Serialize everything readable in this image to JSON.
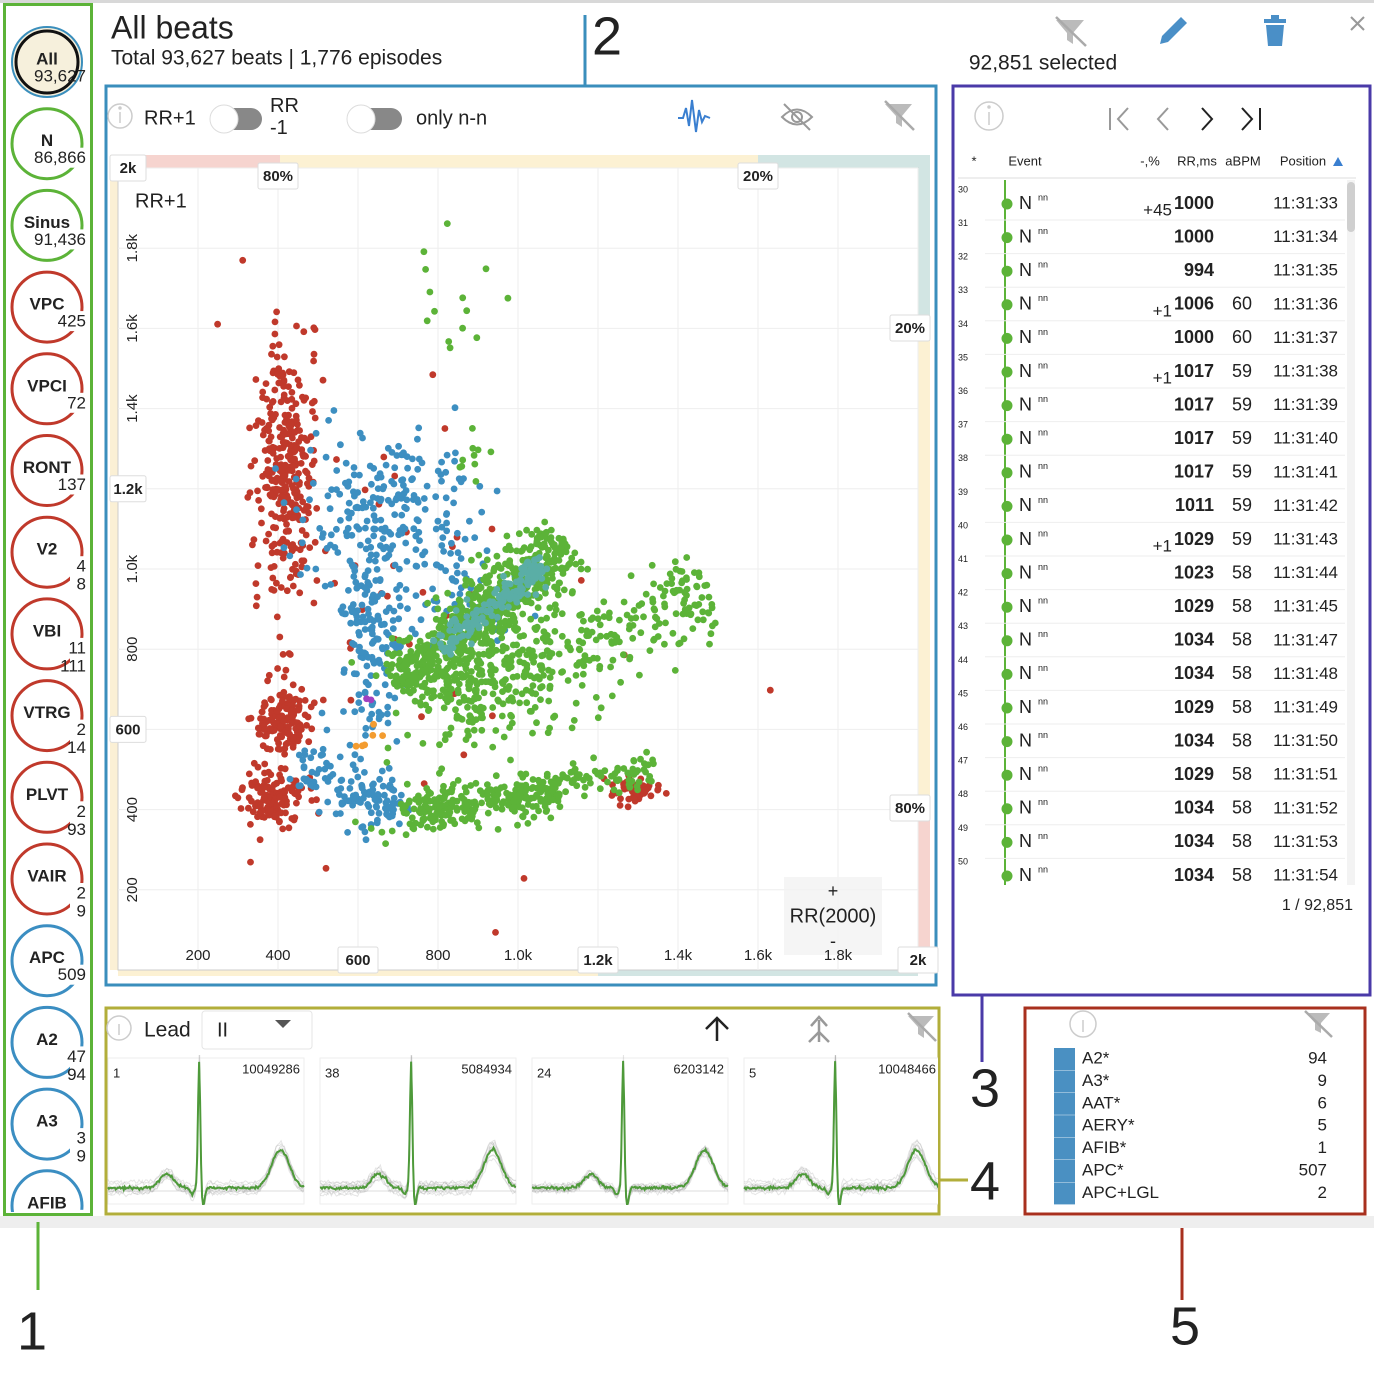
{
  "header": {
    "title": "All beats",
    "subtitle": "Total 93,627 beats | 1,776 episodes",
    "selected": "92,851 selected"
  },
  "sidebar": [
    {
      "label": "All",
      "count": "93,627",
      "color": "#111111"
    },
    {
      "label": "N",
      "count": "86,866",
      "color": "#5cb338"
    },
    {
      "label": "Sinus",
      "count": "91,436",
      "color": "#5cb338"
    },
    {
      "label": "VPC",
      "count": "425",
      "color": "#c0392b"
    },
    {
      "label": "VPCI",
      "count": "72",
      "color": "#c0392b"
    },
    {
      "label": "RONT",
      "count": "137",
      "color": "#c0392b"
    },
    {
      "label": "V2",
      "count": "4",
      "count_2": "8",
      "color": "#c0392b"
    },
    {
      "label": "VBI",
      "count": "11",
      "count_2": "111",
      "color": "#c0392b"
    },
    {
      "label": "VTRG",
      "count": "2",
      "count_2": "14",
      "color": "#c0392b"
    },
    {
      "label": "PLVT",
      "count": "2",
      "count_2": "93",
      "color": "#c0392b"
    },
    {
      "label": "VAIR",
      "count": "2",
      "count_2": "9",
      "color": "#c0392b"
    },
    {
      "label": "APC",
      "count": "509",
      "color": "#3b8ec2"
    },
    {
      "label": "A2",
      "count": "47",
      "count_2": "94",
      "color": "#3b8ec2"
    },
    {
      "label": "A3",
      "count": "3",
      "count_2": "9",
      "color": "#3b8ec2"
    },
    {
      "label": "AFIB",
      "color": "#3b8ec2"
    }
  ],
  "scatter": {
    "toggle_1": "RR+1",
    "toggle_2": "RR-1",
    "filter": "only n-n",
    "y_axis_label": "RR+1",
    "x_axis_label": "RR(2000)",
    "plus": "+",
    "minus": "-",
    "xlim": [
      0,
      2000
    ],
    "ylim": [
      0,
      2000
    ],
    "xticks": [
      200,
      400,
      800,
      {
        "value": 1000,
        "label": "1.0k"
      },
      {
        "value": 1400,
        "label": "1.4k"
      },
      {
        "value": 1600,
        "label": "1.6k"
      },
      {
        "value": 1800,
        "label": "1.8k"
      }
    ],
    "x_markers": [
      600,
      {
        "value": 1200,
        "label": "1.2k"
      },
      {
        "value": 2000,
        "label": "2k"
      }
    ],
    "yticks": [
      200,
      400,
      800,
      {
        "value": 1000,
        "label": "1.0k"
      },
      {
        "value": 1400,
        "label": "1.4k"
      },
      {
        "value": 1600,
        "label": "1.6k"
      },
      {
        "value": 1800,
        "label": "1.8k"
      }
    ],
    "y_markers": [
      600,
      {
        "value": 1200,
        "label": "1.2k"
      },
      {
        "value": 2000,
        "label": "2k"
      }
    ],
    "percent_markers": [
      "80%",
      "20%",
      "20%",
      "80%"
    ]
  },
  "table": {
    "columns": [
      "*",
      "Event",
      "-,%",
      "RR,ms",
      "aBPM",
      "Position"
    ],
    "rows": [
      {
        "n": 30,
        "event": "N",
        "tag": "nn",
        "pct": "+45",
        "rr": 1000,
        "rr_color": "#e8332a",
        "time": "11:31:33"
      },
      {
        "n": 31,
        "event": "N",
        "tag": "nn",
        "rr": 1000,
        "time": "11:31:34"
      },
      {
        "n": 32,
        "event": "N",
        "tag": "nn",
        "rr": 994,
        "time": "11:31:35"
      },
      {
        "n": 33,
        "event": "N",
        "tag": "nn",
        "pct": "+1",
        "rr": 1006,
        "bpm": 60,
        "time": "11:31:36"
      },
      {
        "n": 34,
        "event": "N",
        "tag": "nn",
        "rr": 1000,
        "bpm": 60,
        "time": "11:31:37"
      },
      {
        "n": 35,
        "event": "N",
        "tag": "nn",
        "pct": "+1",
        "rr": 1017,
        "bpm": 59,
        "time": "11:31:38"
      },
      {
        "n": 36,
        "event": "N",
        "tag": "nn",
        "rr": 1017,
        "bpm": 59,
        "time": "11:31:39"
      },
      {
        "n": 37,
        "event": "N",
        "tag": "nn",
        "rr": 1017,
        "bpm": 59,
        "time": "11:31:40"
      },
      {
        "n": 38,
        "event": "N",
        "tag": "nn",
        "rr": 1017,
        "bpm": 59,
        "time": "11:31:41"
      },
      {
        "n": 39,
        "event": "N",
        "tag": "nn",
        "rr": 1011,
        "bpm": 59,
        "time": "11:31:42"
      },
      {
        "n": 40,
        "event": "N",
        "tag": "nn",
        "pct": "+1",
        "rr": 1029,
        "bpm": 59,
        "time": "11:31:43"
      },
      {
        "n": 41,
        "event": "N",
        "tag": "nn",
        "rr": 1023,
        "bpm": 58,
        "time": "11:31:44"
      },
      {
        "n": 42,
        "event": "N",
        "tag": "nn",
        "rr": 1029,
        "bpm": 58,
        "time": "11:31:45"
      },
      {
        "n": 43,
        "event": "N",
        "tag": "nn",
        "rr": 1034,
        "bpm": 58,
        "time": "11:31:47"
      },
      {
        "n": 44,
        "event": "N",
        "tag": "nn",
        "rr": 1034,
        "bpm": 58,
        "time": "11:31:48"
      },
      {
        "n": 45,
        "event": "N",
        "tag": "nn",
        "rr": 1029,
        "bpm": 58,
        "time": "11:31:49"
      },
      {
        "n": 46,
        "event": "N",
        "tag": "nn",
        "rr": 1034,
        "bpm": 58,
        "time": "11:31:50"
      },
      {
        "n": 47,
        "event": "N",
        "tag": "nn",
        "rr": 1029,
        "bpm": 58,
        "time": "11:31:51"
      },
      {
        "n": 48,
        "event": "N",
        "tag": "nn",
        "rr": 1034,
        "bpm": 58,
        "time": "11:31:52"
      },
      {
        "n": 49,
        "event": "N",
        "tag": "nn",
        "rr": 1034,
        "bpm": 58,
        "time": "11:31:53"
      },
      {
        "n": 50,
        "event": "N",
        "tag": "nn",
        "rr": 1034,
        "bpm": 58,
        "time": "11:31:54"
      }
    ],
    "footer": "1 / 92,851"
  },
  "waveforms": {
    "lead_label": "Lead",
    "lead": "II",
    "panels": [
      {
        "index": 1,
        "id": 10049286
      },
      {
        "index": 38,
        "id": 5084934
      },
      {
        "index": 24,
        "id": 6203142
      },
      {
        "index": 5,
        "id": 10048466
      }
    ]
  },
  "classes": [
    {
      "name": "A2*",
      "count": 94
    },
    {
      "name": "A3*",
      "count": 9
    },
    {
      "name": "AAT*",
      "count": 6
    },
    {
      "name": "AERY*",
      "count": 5
    },
    {
      "name": "AFIB*",
      "count": 1
    },
    {
      "name": "APC*",
      "count": 507
    },
    {
      "name": "APC+LGL",
      "count": 2
    }
  ],
  "callouts": [
    1,
    2,
    3,
    4,
    5
  ]
}
